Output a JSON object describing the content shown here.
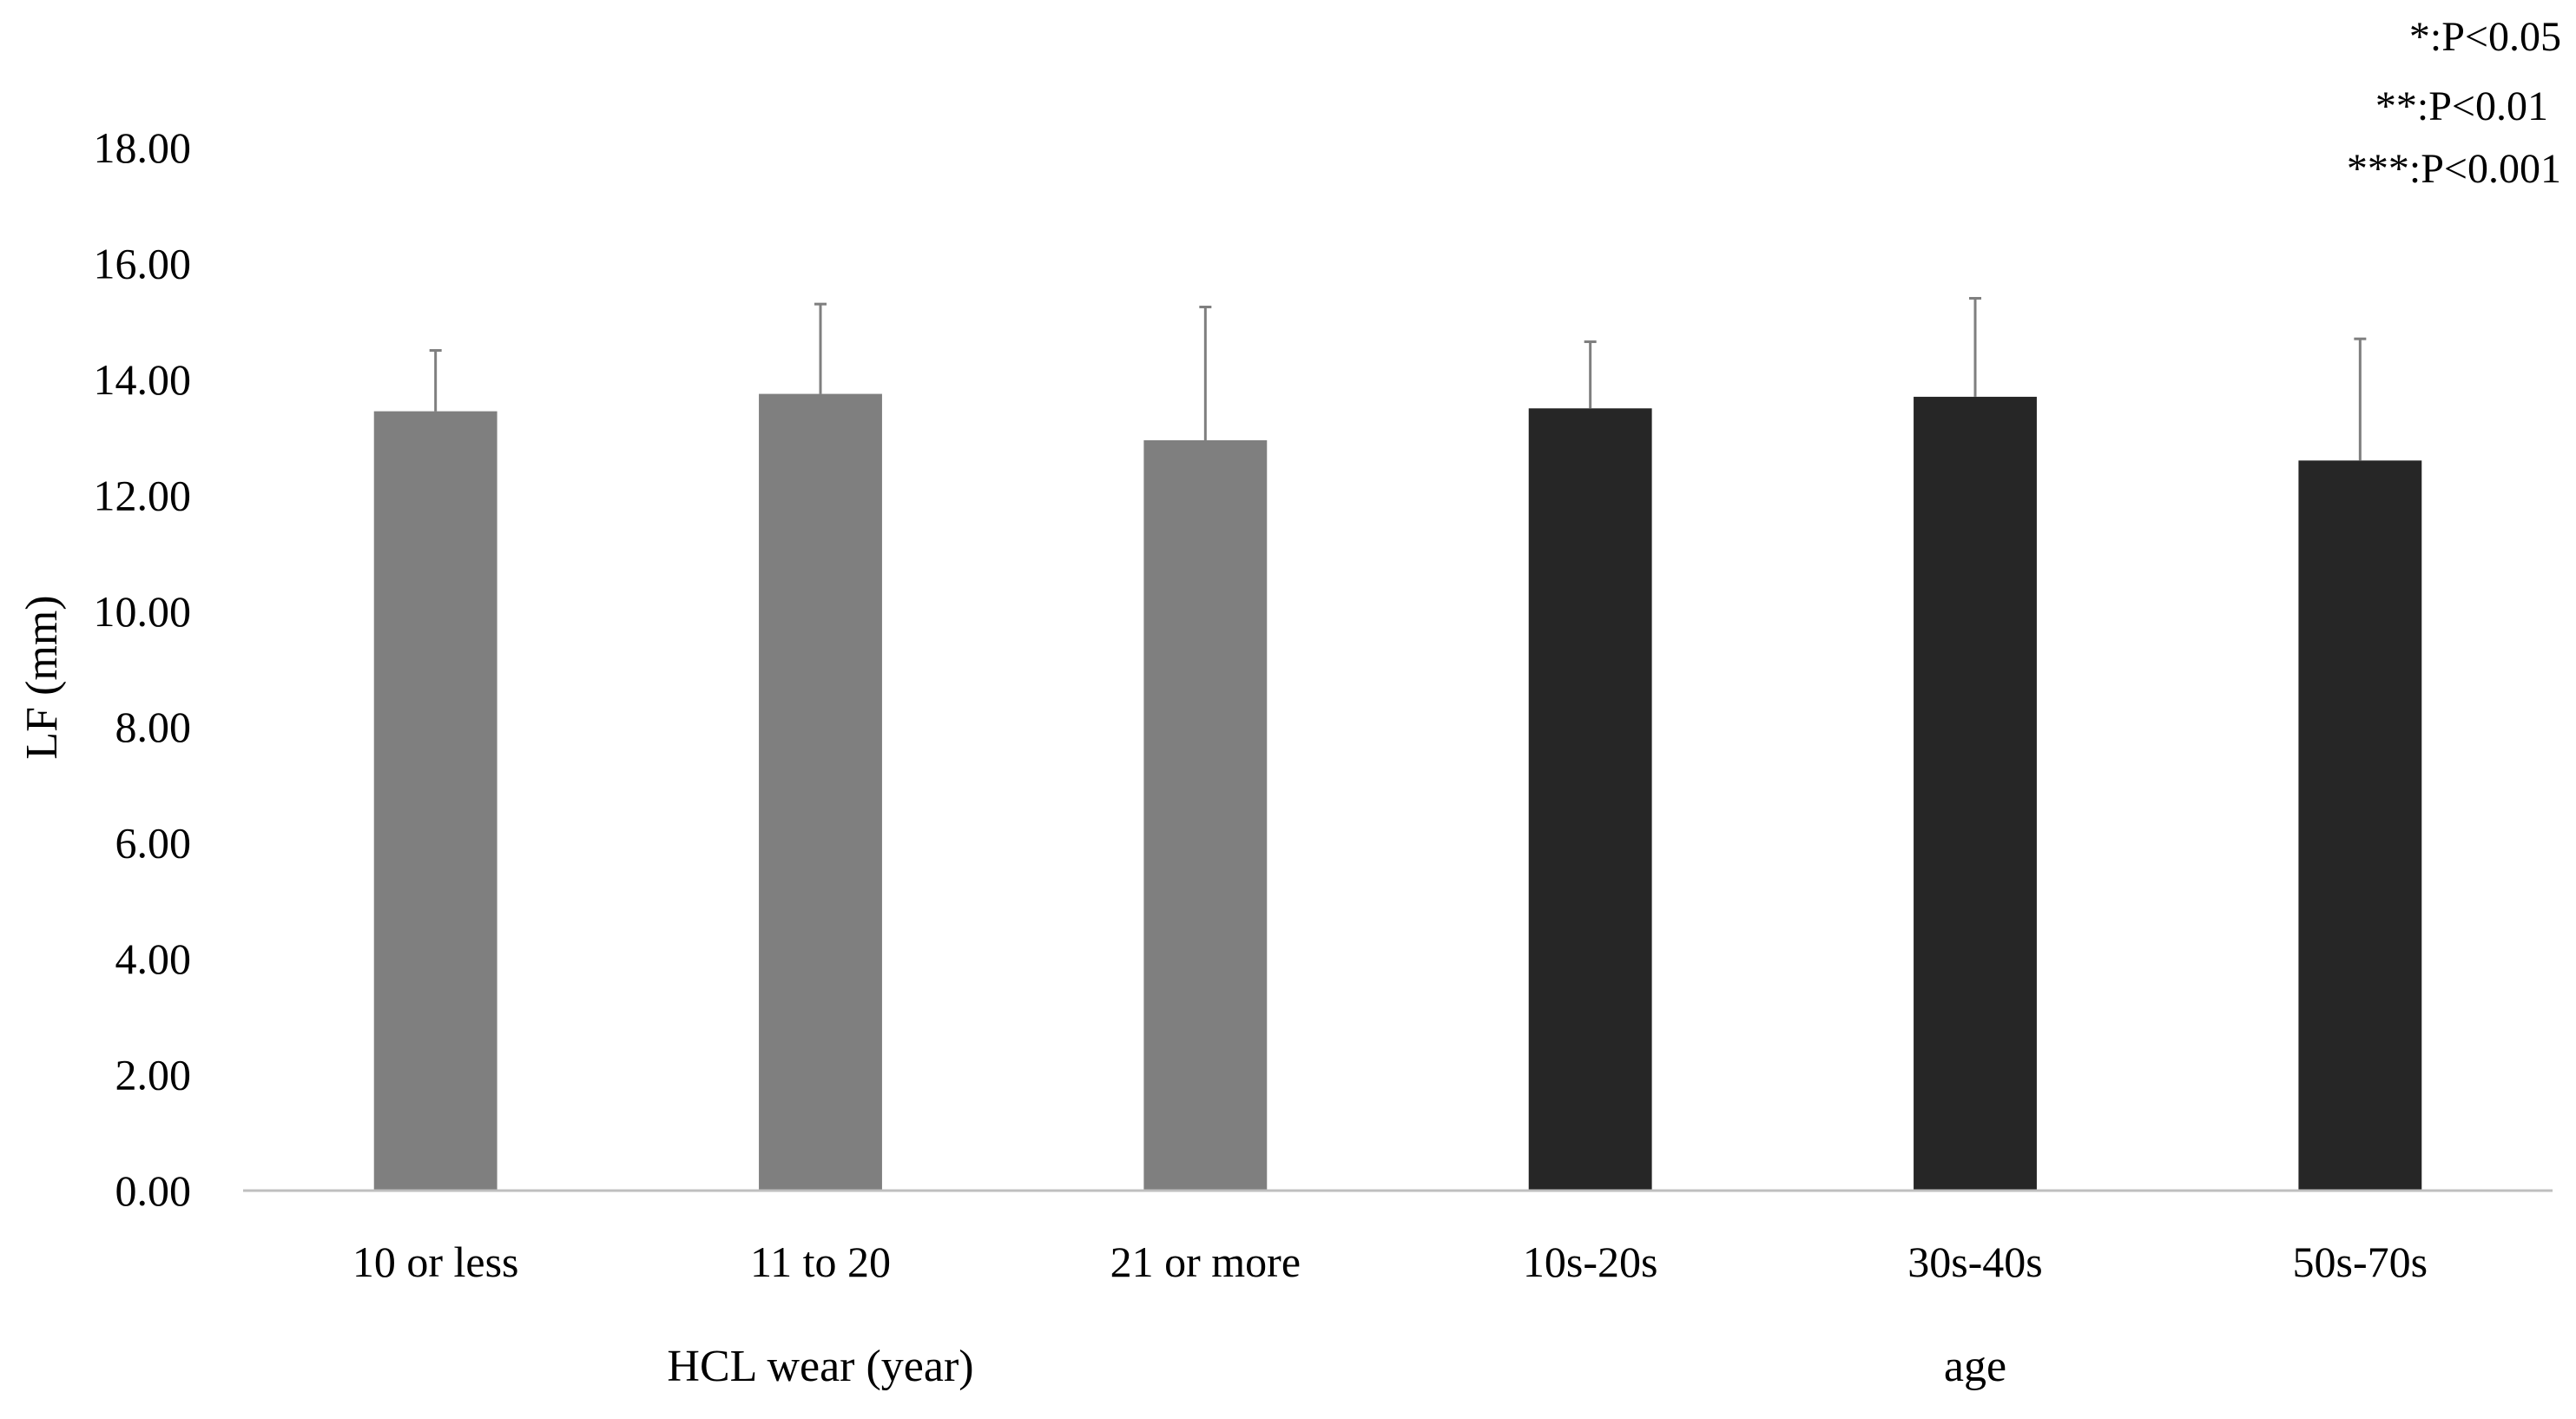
{
  "chart_data": {
    "type": "bar",
    "title": "",
    "xlabel": "",
    "ylabel": "LF (mm)",
    "ylim": [
      0,
      18
    ],
    "y_ticks": [
      "0.00",
      "2.00",
      "4.00",
      "6.00",
      "8.00",
      "10.00",
      "12.00",
      "14.00",
      "16.00",
      "18.00"
    ],
    "grid": false,
    "categories": [
      "10 or less",
      "11 to 20",
      "21 or more",
      "10s-20s",
      "30s-40s",
      "50s-70s"
    ],
    "values": [
      13.45,
      13.75,
      12.95,
      13.5,
      13.7,
      12.6
    ],
    "error_plus": [
      1.05,
      1.55,
      2.3,
      1.15,
      1.7,
      2.1
    ],
    "groups": [
      {
        "label": "HCL wear (year)",
        "categories": [
          "10 or less",
          "11 to 20",
          "21 or more"
        ],
        "color": "#7f7f7f"
      },
      {
        "label": "age",
        "categories": [
          "10s-20s",
          "30s-40s",
          "50s-70s"
        ],
        "color": "#262626"
      }
    ],
    "annotations": [
      "*:P<0.05",
      "**:P<0.01",
      "***:P<0.001"
    ]
  }
}
